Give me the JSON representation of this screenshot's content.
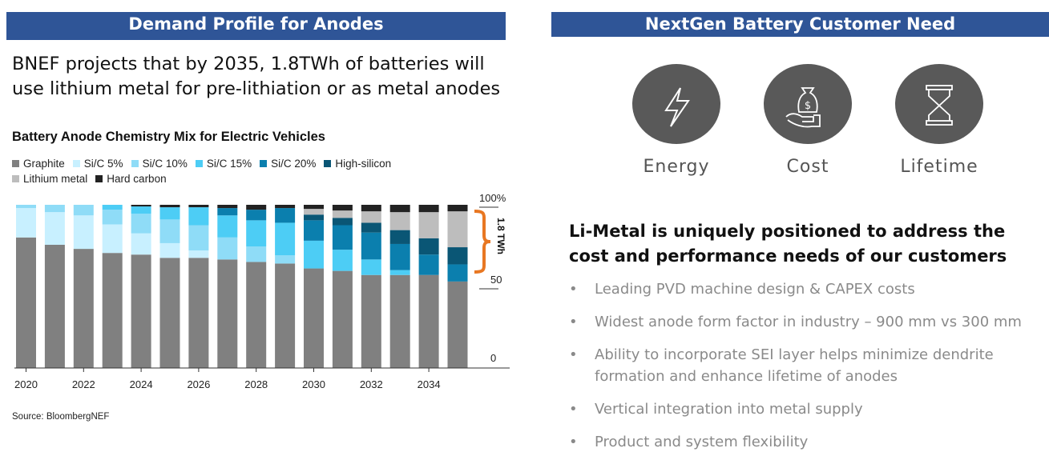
{
  "left": {
    "header": "Demand Profile for Anodes",
    "intro": "BNEF projects that by 2035, 1.8TWh of batteries will use lithium metal for pre-lithiation or as metal anodes",
    "source": "Source: BloombergNEF"
  },
  "right": {
    "header": "NextGen Battery Customer Need",
    "icons": [
      {
        "label": "Energy",
        "icon": "lightning-bolt-icon"
      },
      {
        "label": "Cost",
        "icon": "money-bag-hand-icon"
      },
      {
        "label": "Lifetime",
        "icon": "hourglass-icon"
      }
    ],
    "headline": "Li-Metal is uniquely positioned to address the cost and performance needs of our customers",
    "bullets": [
      "Leading PVD machine design & CAPEX costs",
      "Widest anode form factor in industry – 900 mm vs 300 mm",
      "Ability to incorporate SEI layer helps minimize dendrite formation and enhance lifetime of anodes",
      "Vertical integration into metal supply",
      "Product and system flexibility"
    ]
  },
  "chart_data": {
    "type": "bar",
    "stacked": true,
    "title": "Battery Anode Chemistry Mix for Electric Vehicles",
    "xlabel": "",
    "ylabel": "",
    "ylim": [
      0,
      100
    ],
    "y_ticks": [
      "0",
      "50",
      "100%"
    ],
    "y_axis_side": "right",
    "legend_position": "top-left",
    "categories": [
      "2020",
      "2021",
      "2022",
      "2023",
      "2024",
      "2025",
      "2026",
      "2027",
      "2028",
      "2029",
      "2030",
      "2031",
      "2032",
      "2033",
      "2034",
      "2035"
    ],
    "x_tick_labels": [
      "2020",
      "2022",
      "2024",
      "2026",
      "2028",
      "2030",
      "2032",
      "2034"
    ],
    "annotation": {
      "text": "1.8 TWh",
      "color": "#e87722"
    },
    "series": [
      {
        "name": "Graphite",
        "color": "#808080",
        "values": [
          80,
          75.5,
          73,
          70.5,
          69.5,
          67.5,
          67.5,
          66.5,
          65,
          64,
          61,
          59.5,
          57,
          57,
          57,
          53
        ]
      },
      {
        "name": "Si/C 5%",
        "color": "#c8f0ff",
        "values": [
          18,
          20,
          20.5,
          17.5,
          13,
          9,
          4.5,
          0,
          0,
          0,
          0,
          0,
          0,
          0,
          0,
          0
        ]
      },
      {
        "name": "Si/C 10%",
        "color": "#8fdcf7",
        "values": [
          2,
          4.5,
          6.5,
          9,
          12,
          14.5,
          15.5,
          13.5,
          9.5,
          5,
          0,
          0,
          0,
          0,
          0,
          0
        ]
      },
      {
        "name": "Si/C 15%",
        "color": "#4dcdf5",
        "values": [
          0,
          0,
          0,
          3,
          4.5,
          7.5,
          11,
          13.5,
          16,
          20,
          17,
          13,
          9.5,
          3,
          0,
          0
        ]
      },
      {
        "name": "Si/C 20%",
        "color": "#0b7fae",
        "values": [
          0,
          0,
          0,
          0,
          0,
          0,
          0,
          4.5,
          6.5,
          9,
          12.5,
          15,
          16.5,
          16,
          12.5,
          10.5
        ]
      },
      {
        "name": "High-silicon",
        "color": "#0a5675",
        "values": [
          0,
          0,
          0,
          0,
          0,
          0,
          0,
          0,
          0,
          0,
          3.5,
          4.5,
          6,
          8.5,
          10,
          10.5
        ]
      },
      {
        "name": "Lithium metal",
        "color": "#bdbdbd",
        "values": [
          0,
          0,
          0,
          0,
          0,
          0,
          0,
          0,
          0,
          0,
          3.5,
          4.5,
          7,
          11,
          16,
          22
        ]
      },
      {
        "name": "Hard carbon",
        "color": "#222222",
        "values": [
          0,
          0,
          0,
          0,
          1,
          1.5,
          1.5,
          2,
          3,
          2,
          2.5,
          3.5,
          4,
          4.5,
          4.5,
          4
        ]
      }
    ]
  }
}
